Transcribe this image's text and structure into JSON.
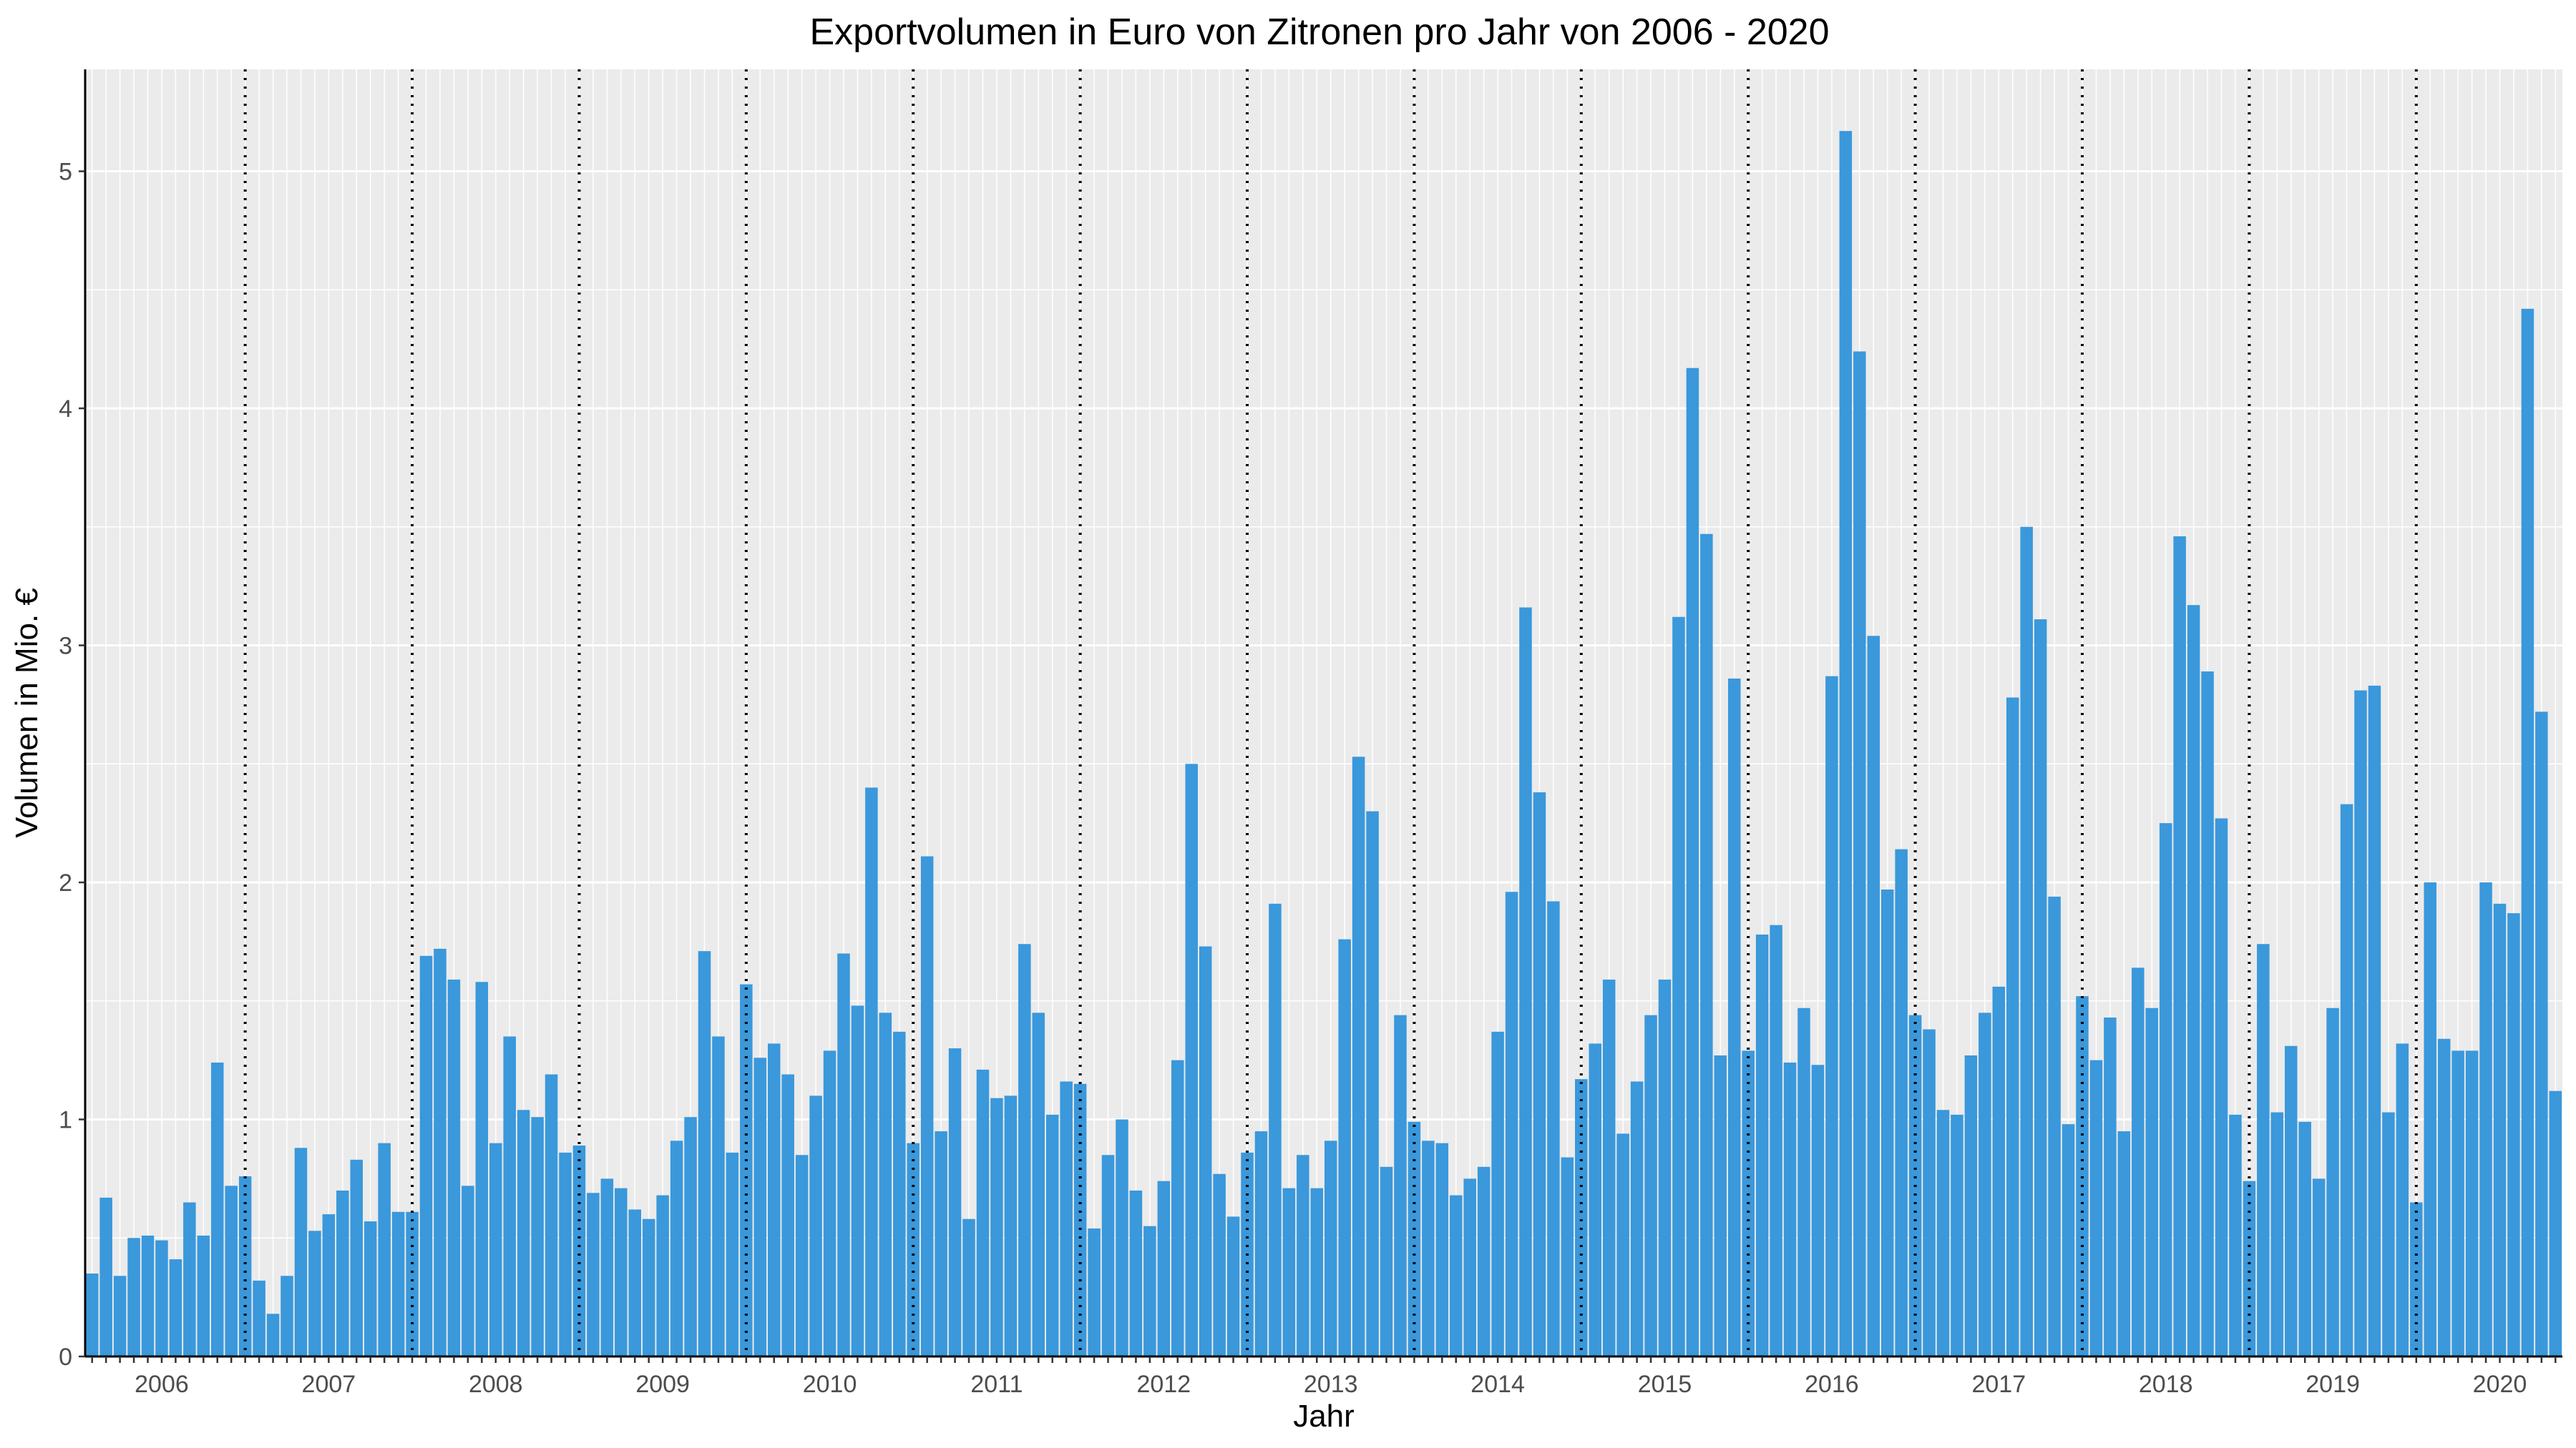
{
  "chart_data": {
    "type": "bar",
    "title": "Exportvolumen in Euro von Zitronen pro Jahr von 2006 - 2020",
    "xlabel": "Jahr",
    "ylabel": "Volumen in Mio. €",
    "ylim": [
      0,
      5.43
    ],
    "yticks": [
      "0",
      "1",
      "2",
      "3",
      "4",
      "5"
    ],
    "years": [
      "2006",
      "2007",
      "2008",
      "2009",
      "2010",
      "2011",
      "2012",
      "2013",
      "2014",
      "2015",
      "2016",
      "2017",
      "2018",
      "2019",
      "2020"
    ],
    "months_per_year": 12,
    "grid": true,
    "year_separators": "dotted",
    "colors": {
      "bar": "#3a98db",
      "panel": "#ebebeb",
      "grid": "#ffffff",
      "separator": "#000000"
    },
    "values": [
      0.35,
      0.67,
      0.34,
      0.5,
      0.51,
      0.49,
      0.41,
      0.65,
      0.51,
      1.24,
      0.72,
      0.76,
      0.32,
      0.18,
      0.34,
      0.88,
      0.53,
      0.6,
      0.7,
      0.83,
      0.57,
      0.9,
      0.61,
      0.61,
      1.69,
      1.72,
      1.59,
      0.72,
      1.58,
      0.9,
      1.35,
      1.04,
      1.01,
      1.19,
      0.86,
      0.89,
      0.69,
      0.75,
      0.71,
      0.62,
      0.58,
      0.68,
      0.91,
      1.01,
      1.71,
      1.35,
      0.86,
      1.57,
      1.26,
      1.32,
      1.19,
      0.85,
      1.1,
      1.29,
      1.7,
      1.48,
      2.4,
      1.45,
      1.37,
      0.9,
      2.11,
      0.95,
      1.3,
      0.58,
      1.21,
      1.09,
      1.1,
      1.74,
      1.45,
      1.02,
      1.16,
      1.15,
      0.54,
      0.85,
      1.0,
      0.7,
      0.55,
      0.74,
      1.25,
      2.5,
      1.73,
      0.77,
      0.59,
      0.86,
      0.95,
      1.91,
      0.71,
      0.85,
      0.71,
      0.91,
      1.76,
      2.53,
      2.3,
      0.8,
      1.44,
      0.99,
      0.91,
      0.9,
      0.68,
      0.75,
      0.8,
      1.37,
      1.96,
      3.16,
      2.38,
      1.92,
      0.84,
      1.17,
      1.32,
      1.59,
      0.94,
      1.16,
      1.44,
      1.59,
      3.12,
      4.17,
      3.47,
      1.27,
      2.86,
      1.29,
      1.78,
      1.82,
      1.24,
      1.47,
      1.23,
      2.87,
      5.17,
      4.24,
      3.04,
      1.97,
      2.14,
      1.44,
      1.38,
      1.04,
      1.02,
      1.27,
      1.45,
      1.56,
      2.78,
      3.5,
      3.11,
      1.94,
      0.98,
      1.52,
      1.25,
      1.43,
      0.95,
      1.64,
      1.47,
      2.25,
      3.46,
      3.17,
      2.89,
      2.27,
      1.02,
      0.74,
      1.74,
      1.03,
      1.31,
      0.99,
      0.75,
      1.47,
      2.33,
      2.81,
      2.83,
      1.03,
      1.32,
      0.65,
      2.0,
      1.34,
      1.29,
      1.29,
      2.0,
      1.91,
      1.87,
      4.42,
      2.72,
      1.12
    ]
  }
}
